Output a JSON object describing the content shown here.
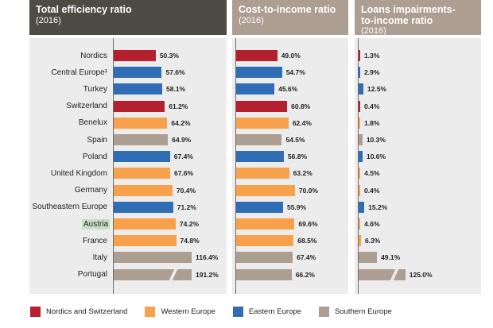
{
  "chart_data": {
    "type": "bar",
    "orientation": "horizontal",
    "categories": [
      "Nordics",
      "Central Europe¹",
      "Turkey",
      "Switzerland",
      "Benelux",
      "Spain",
      "Poland",
      "United Kingdom",
      "Germany",
      "Southeastern Europe",
      "Austria",
      "France",
      "Italy",
      "Portugal"
    ],
    "regions": [
      "Nordics and Switzerland",
      "Eastern Europe",
      "Eastern Europe",
      "Nordics and Switzerland",
      "Western Europe",
      "Southern Europe",
      "Eastern Europe",
      "Western Europe",
      "Western Europe",
      "Eastern Europe",
      "Western Europe",
      "Western Europe",
      "Southern Europe",
      "Southern Europe"
    ],
    "highlighted_category": "Austria",
    "panels": [
      {
        "title": "Total efficiency ratio",
        "subtitle": "(2016)",
        "header_color": "#4e4a44",
        "values": [
          50.3,
          57.6,
          58.1,
          61.2,
          64.2,
          64.9,
          67.4,
          67.6,
          70.4,
          71.2,
          74.2,
          74.8,
          116.4,
          191.2
        ],
        "labels": [
          "50.3%",
          "57.6%",
          "58.1%",
          "61.2%",
          "64.2%",
          "64.9%",
          "67.4%",
          "67.6%",
          "70.4%",
          "71.2%",
          "74.2%",
          "74.8%",
          "116.4%",
          "191.2%"
        ],
        "broken_axis": [
          "Portugal"
        ]
      },
      {
        "title": "Cost-to-income ratio",
        "subtitle": "(2016)",
        "header_color": "#ad9e92",
        "values": [
          49.0,
          54.7,
          45.6,
          60.8,
          62.4,
          54.5,
          56.8,
          63.2,
          70.0,
          55.9,
          69.6,
          68.5,
          67.4,
          66.2
        ],
        "labels": [
          "49.0%",
          "54.7%",
          "45.6%",
          "60.8%",
          "62.4%",
          "54.5%",
          "56.8%",
          "63.2%",
          "70.0%",
          "55.9%",
          "69.6%",
          "68.5%",
          "67.4%",
          "66.2%"
        ],
        "broken_axis": []
      },
      {
        "title": "Loans impairments-",
        "title2": "to-income ratio",
        "subtitle": "(2016)",
        "header_color": "#ad9e92",
        "values": [
          1.3,
          2.9,
          12.5,
          0.4,
          1.8,
          10.3,
          10.6,
          4.5,
          0.4,
          15.2,
          4.6,
          6.3,
          49.1,
          125.0
        ],
        "labels": [
          "1.3%",
          "2.9%",
          "12.5%",
          "0.4%",
          "1.8%",
          "10.3%",
          "10.6%",
          "4.5%",
          "0.4%",
          "15.2%",
          "4.6%",
          "6.3%",
          "49.1%",
          "125.0%"
        ],
        "broken_axis": [
          "Portugal"
        ]
      }
    ],
    "legend": [
      {
        "label": "Nordics and Switzerland",
        "color": "#b5202e"
      },
      {
        "label": "Western Europe",
        "color": "#f7a14c"
      },
      {
        "label": "Eastern Europe",
        "color": "#2f6db5"
      },
      {
        "label": "Southern Europe",
        "color": "#ad9e92"
      }
    ],
    "grid": false
  }
}
